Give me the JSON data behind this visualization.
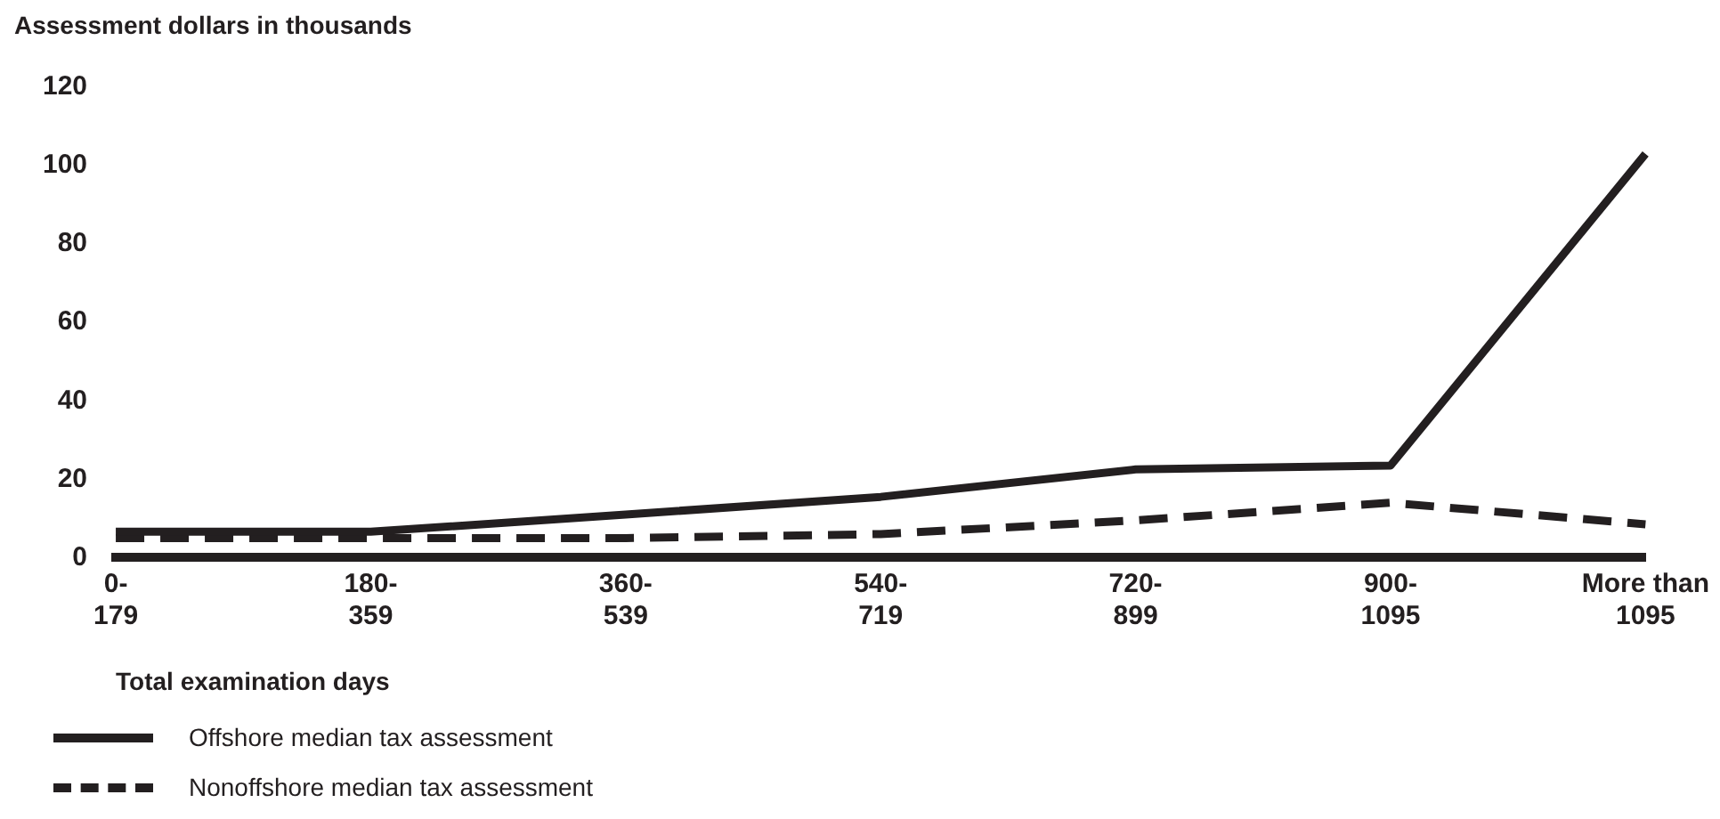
{
  "chart_data": {
    "type": "line",
    "ylabel": "Assessment dollars in thousands",
    "xlabel": "Total examination days",
    "categories": [
      "0-\n179",
      "180-\n359",
      "360-\n539",
      "540-\n719",
      "720-\n899",
      "900-\n1095",
      "More than\n1095"
    ],
    "series": [
      {
        "name": "Offshore median tax assessment",
        "color": "#231f20",
        "line_style": "solid",
        "values": [
          6.6,
          6.6,
          11,
          15.5,
          22.5,
          23.5,
          103
        ]
      },
      {
        "name": "Nonoffshore median tax assessment",
        "color": "#231f20",
        "line_style": "dashed",
        "values": [
          5,
          5,
          5,
          6,
          9.5,
          14,
          8.5
        ]
      }
    ],
    "ylim": [
      0,
      120
    ],
    "yticks": [
      0,
      20,
      40,
      60,
      80,
      100,
      120
    ],
    "grid": false,
    "legend": "bottom",
    "marker": "none"
  }
}
